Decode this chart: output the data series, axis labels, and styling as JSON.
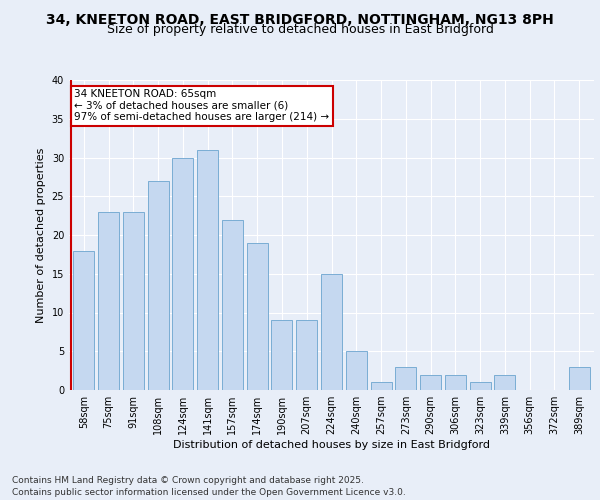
{
  "title_line1": "34, KNEETON ROAD, EAST BRIDGFORD, NOTTINGHAM, NG13 8PH",
  "title_line2": "Size of property relative to detached houses in East Bridgford",
  "xlabel": "Distribution of detached houses by size in East Bridgford",
  "ylabel": "Number of detached properties",
  "categories": [
    "58sqm",
    "75sqm",
    "91sqm",
    "108sqm",
    "124sqm",
    "141sqm",
    "157sqm",
    "174sqm",
    "190sqm",
    "207sqm",
    "224sqm",
    "240sqm",
    "257sqm",
    "273sqm",
    "290sqm",
    "306sqm",
    "323sqm",
    "339sqm",
    "356sqm",
    "372sqm",
    "389sqm"
  ],
  "values": [
    18,
    23,
    23,
    27,
    30,
    31,
    22,
    19,
    9,
    9,
    15,
    5,
    1,
    3,
    2,
    2,
    1,
    2,
    0,
    0,
    3
  ],
  "bar_color": "#c5d8f0",
  "bar_edge_color": "#7aadd4",
  "highlight_line_color": "#cc0000",
  "annotation_text": "34 KNEETON ROAD: 65sqm\n← 3% of detached houses are smaller (6)\n97% of semi-detached houses are larger (214) →",
  "annotation_box_color": "#ffffff",
  "annotation_box_edge": "#cc0000",
  "ylim": [
    0,
    40
  ],
  "yticks": [
    0,
    5,
    10,
    15,
    20,
    25,
    30,
    35,
    40
  ],
  "background_color": "#e8eef8",
  "footer_line1": "Contains HM Land Registry data © Crown copyright and database right 2025.",
  "footer_line2": "Contains public sector information licensed under the Open Government Licence v3.0.",
  "title_fontsize": 10,
  "subtitle_fontsize": 9,
  "axis_label_fontsize": 8,
  "tick_fontsize": 7,
  "annotation_fontsize": 7.5,
  "footer_fontsize": 6.5
}
